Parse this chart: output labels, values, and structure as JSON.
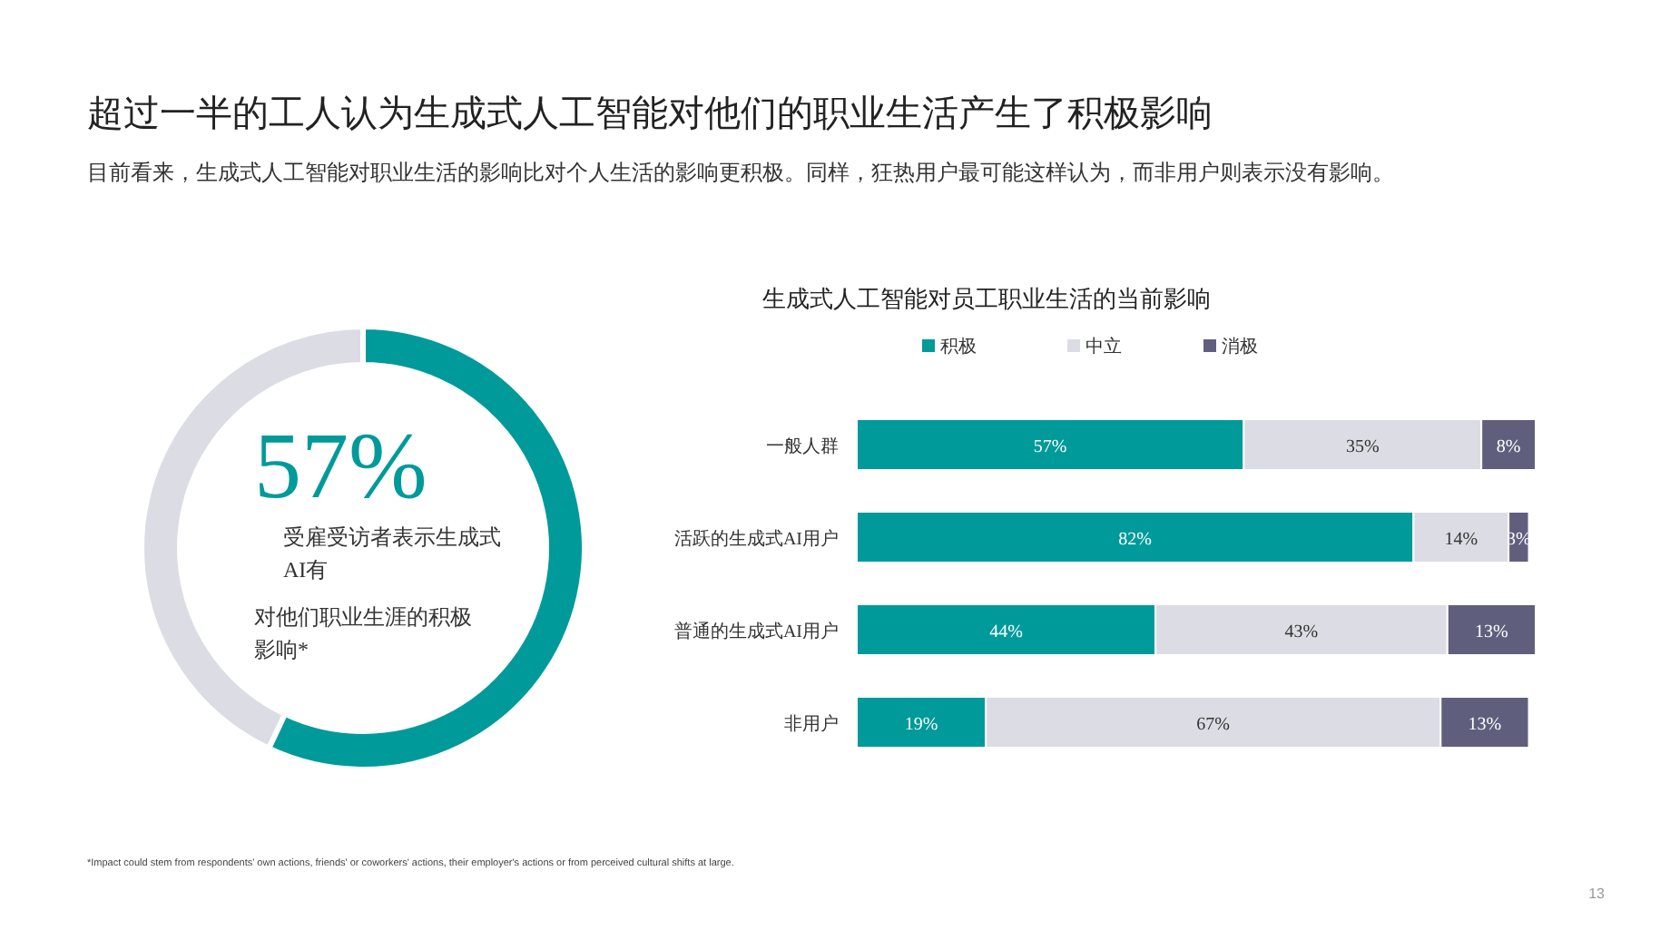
{
  "chart_data": [
    {
      "type": "donut",
      "title": "超过一半的工人认为生成式人工智能对他们的职业生活产生了积极影响",
      "subtitle": "目前看来，生成式人工智能对职业生活的影响比对个人生活的影响更积极。同样，狂热用户最可能这样认为，而非用户则表示没有影响。",
      "categories": [
        null,
        null
      ],
      "values": [
        57,
        43
      ],
      "colors": [
        "#009a9a",
        "#dcdde4"
      ],
      "value_labels": [
        "57%",
        null
      ],
      "annotations": [
        "受雇受访者表示生成式AI有",
        "对他们职业生涯的积极影响*",
        "*Impact could stem from respondents' own actions, friends' or coworkers' actions, their employer's actions or from perceived cultural shifts at large.",
        "13"
      ]
    },
    {
      "type": "bar",
      "orientation": "horizontal",
      "stacked": true,
      "title": "生成式人工智能对员工职业生活的当前影响",
      "categories": [
        "一般人群",
        "活跃的生成式AI用户",
        "普通的生成式AI用户",
        "非用户"
      ],
      "legend": "top",
      "series": [
        {
          "name": "积极",
          "color": "#009a9a",
          "values": [
            57,
            82,
            44,
            19
          ],
          "value_labels": [
            "57%",
            "82%",
            "44%",
            "19%"
          ]
        },
        {
          "name": "中立",
          "color": "#dcdde4",
          "values": [
            35,
            14,
            43,
            67
          ],
          "value_labels": [
            "35%",
            "14%",
            "43%",
            "67%"
          ]
        },
        {
          "name": "消极",
          "color": "#5f5f7d",
          "values": [
            8,
            3,
            13,
            13
          ],
          "value_labels": [
            "8%",
            "3%",
            "13%",
            "13%"
          ]
        }
      ]
    }
  ]
}
